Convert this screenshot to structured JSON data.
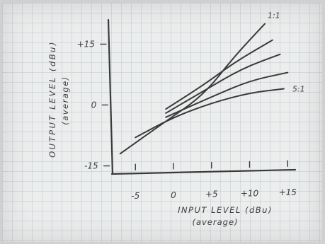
{
  "chart_data": {
    "type": "line",
    "title": "",
    "xlabel": "INPUT LEVEL (dBu)",
    "xlabel_sub": "(average)",
    "ylabel": "OUTPUT LEVEL (dBu)",
    "ylabel_sub": "(average)",
    "xlim": [
      -8,
      16
    ],
    "ylim": [
      -17,
      21
    ],
    "x_ticks": [
      {
        "value": -5,
        "label": "-5"
      },
      {
        "value": 0,
        "label": "0"
      },
      {
        "value": 5,
        "label": "+5"
      },
      {
        "value": 10,
        "label": "+10"
      },
      {
        "value": 15,
        "label": "+15"
      }
    ],
    "y_ticks": [
      {
        "value": 15,
        "label": "+15"
      },
      {
        "value": 0,
        "label": "0"
      },
      {
        "value": -15,
        "label": "-15"
      }
    ],
    "grid": false,
    "series": [
      {
        "name": "1:1",
        "x": [
          -7,
          -1,
          4,
          8,
          12
        ],
        "y": [
          -12,
          -4,
          2.5,
          12,
          20
        ]
      },
      {
        "name": "",
        "x": [
          -1,
          4,
          8,
          13
        ],
        "y": [
          -1,
          5,
          10.5,
          16
        ]
      },
      {
        "name": "",
        "x": [
          -1,
          4,
          9,
          14
        ],
        "y": [
          -2,
          3.5,
          9,
          12.5
        ]
      },
      {
        "name": "",
        "x": [
          -1,
          5,
          10,
          15
        ],
        "y": [
          -3,
          2,
          6,
          8
        ]
      },
      {
        "name": "5:1",
        "x": [
          -5,
          0,
          5,
          10,
          14.5
        ],
        "y": [
          -8,
          -3,
          0.5,
          3,
          4
        ]
      }
    ]
  }
}
